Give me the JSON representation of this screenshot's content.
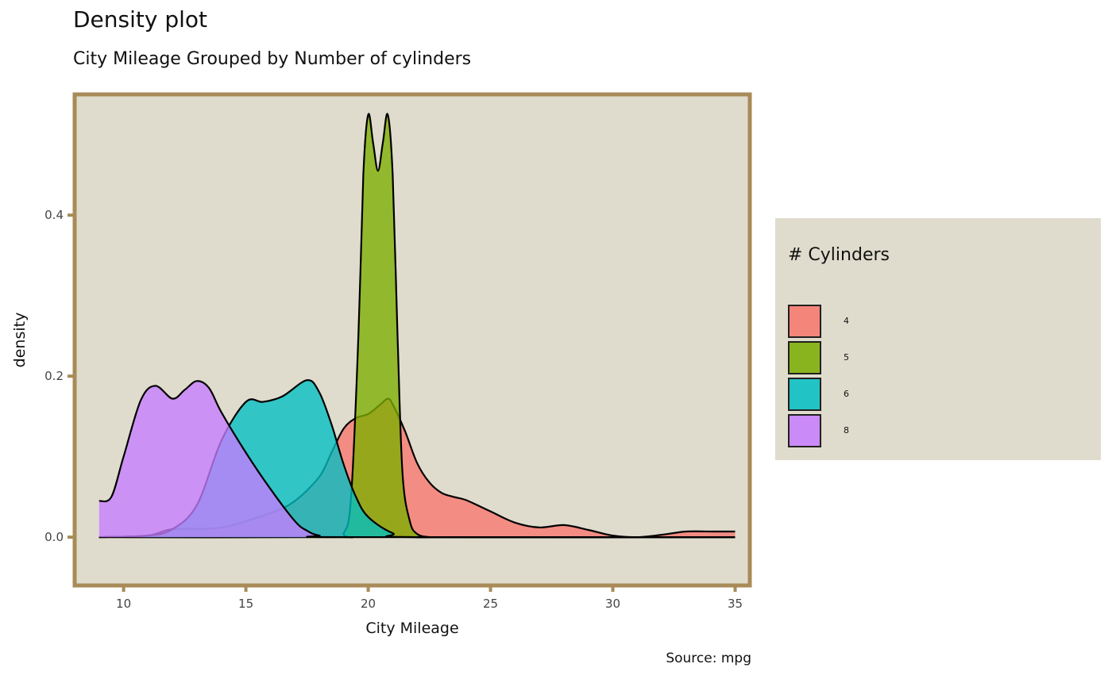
{
  "title": "Density plot",
  "subtitle": "City Mileage Grouped by Number of cylinders",
  "caption": "Source: mpg",
  "chart_data": {
    "type": "area",
    "xlabel": "City Mileage",
    "ylabel": "density",
    "xlim": [
      8,
      35.6
    ],
    "ylim": [
      -0.06,
      0.55
    ],
    "x_ticks": [
      10,
      15,
      20,
      25,
      30,
      35
    ],
    "y_ticks": [
      0.0,
      0.2,
      0.4
    ],
    "y_tick_labels": [
      "0.0",
      "0.2",
      "0.4"
    ],
    "legend": {
      "title": "# Cylinders",
      "position": "right"
    },
    "panel_background": "#e0dccd",
    "panel_border": "#a88b57",
    "series": [
      {
        "name": "4",
        "color": "#f8766d",
        "x": [
          9,
          11,
          12,
          14,
          16,
          17,
          18,
          18.5,
          19,
          19.5,
          20,
          20.5,
          20.8,
          21,
          21.5,
          22,
          22.5,
          23,
          23.5,
          24,
          25,
          26,
          27,
          28,
          29,
          30,
          31,
          32,
          33,
          34,
          35
        ],
        "y": [
          0,
          0.002,
          0.01,
          0.012,
          0.03,
          0.045,
          0.075,
          0.105,
          0.135,
          0.148,
          0.153,
          0.165,
          0.172,
          0.165,
          0.132,
          0.092,
          0.068,
          0.055,
          0.05,
          0.046,
          0.032,
          0.018,
          0.012,
          0.015,
          0.009,
          0.002,
          0.0,
          0.003,
          0.007,
          0.007,
          0.007
        ]
      },
      {
        "name": "5",
        "color": "#7cae00",
        "x": [
          9,
          18.5,
          19,
          19.3,
          19.6,
          19.8,
          20.0,
          20.2,
          20.4,
          20.6,
          20.8,
          21.0,
          21.2,
          21.4,
          21.7,
          22.0,
          22.5,
          23,
          35
        ],
        "y": [
          0,
          0,
          0.005,
          0.05,
          0.25,
          0.45,
          0.525,
          0.49,
          0.455,
          0.49,
          0.525,
          0.45,
          0.25,
          0.08,
          0.02,
          0.004,
          0.0,
          0,
          0
        ]
      },
      {
        "name": "6",
        "color": "#00bfc4",
        "x": [
          9,
          11,
          12,
          13,
          14,
          15,
          15.7,
          16.5,
          17.5,
          18,
          18.5,
          19,
          19.5,
          20,
          21,
          22,
          35
        ],
        "y": [
          0,
          0.002,
          0.01,
          0.04,
          0.12,
          0.168,
          0.168,
          0.175,
          0.195,
          0.18,
          0.14,
          0.09,
          0.05,
          0.025,
          0.005,
          0.0,
          0
        ]
      },
      {
        "name": "8",
        "color": "#c77cff",
        "x": [
          9,
          9.5,
          10,
          10.7,
          11.3,
          12,
          12.5,
          13,
          13.5,
          14,
          15,
          16,
          17,
          17.5,
          18,
          19,
          35
        ],
        "y": [
          0.045,
          0.05,
          0.1,
          0.17,
          0.188,
          0.172,
          0.183,
          0.194,
          0.185,
          0.155,
          0.105,
          0.06,
          0.02,
          0.008,
          0.002,
          0.0,
          0
        ]
      }
    ]
  }
}
